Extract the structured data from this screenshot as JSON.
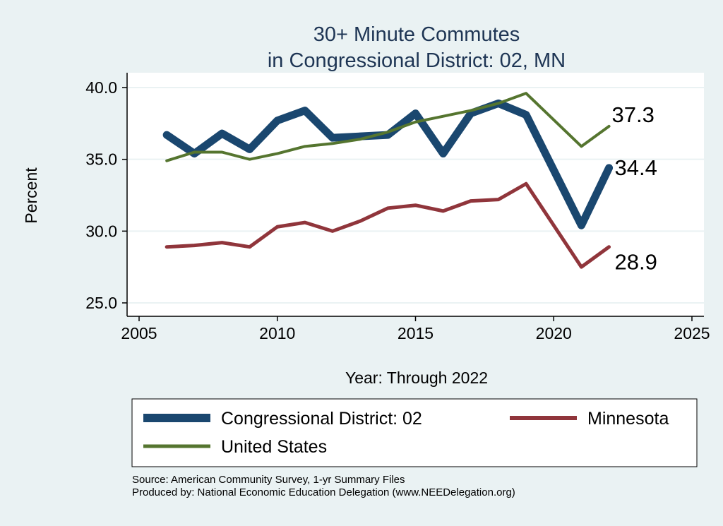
{
  "chart_data": {
    "type": "line",
    "title": [
      "30+ Minute Commutes",
      "in Congressional District:  02, MN"
    ],
    "xlabel": "Year: Through 2022",
    "ylabel": "Percent",
    "xlim": [
      2005,
      2025
    ],
    "ylim": [
      25,
      40
    ],
    "xticks": [
      2005,
      2010,
      2015,
      2020,
      2025
    ],
    "yticks": [
      "25.0",
      "30.0",
      "35.0",
      "40.0"
    ],
    "grid": "horizontal",
    "legend_placement": "bottom",
    "x": [
      2006,
      2007,
      2008,
      2009,
      2010,
      2011,
      2012,
      2013,
      2014,
      2015,
      2016,
      2017,
      2018,
      2019,
      2021,
      2022
    ],
    "series": [
      {
        "name": "Congressional District:  02",
        "color": "#1a476f",
        "end_label": "34.4",
        "values": [
          36.7,
          35.4,
          36.8,
          35.7,
          37.7,
          38.4,
          36.5,
          36.6,
          36.7,
          38.2,
          35.4,
          38.2,
          38.9,
          38.1,
          30.4,
          34.4
        ]
      },
      {
        "name": "Minnesota",
        "color": "#90353b",
        "end_label": "28.9",
        "values": [
          28.9,
          29.0,
          29.2,
          28.9,
          30.3,
          30.6,
          30.0,
          30.7,
          31.6,
          31.8,
          31.4,
          32.1,
          32.2,
          33.3,
          27.5,
          28.9
        ]
      },
      {
        "name": "United States",
        "color": "#55752f",
        "end_label": "37.3",
        "values": [
          34.9,
          35.5,
          35.5,
          35.0,
          35.4,
          35.9,
          36.1,
          36.4,
          36.9,
          37.6,
          38.0,
          38.4,
          38.9,
          39.6,
          35.9,
          37.3
        ]
      }
    ]
  },
  "notes": {
    "source": "Source: American Community Survey, 1-yr Summary Files",
    "produced": "Produced by: National Economic Education Delegation (www.NEEDelegation.org)"
  }
}
